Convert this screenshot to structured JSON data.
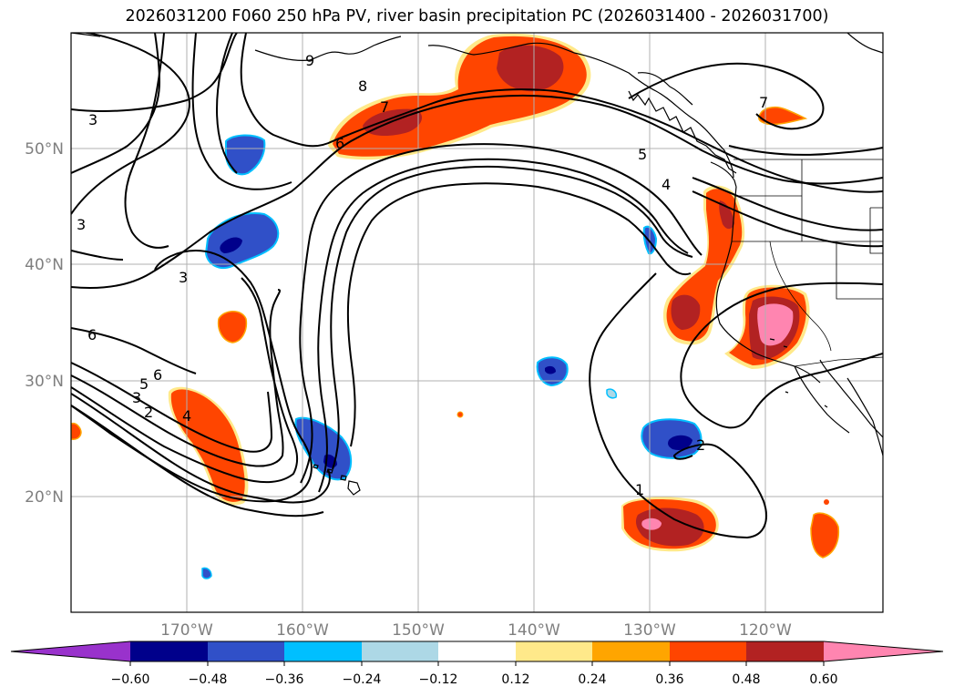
{
  "title": "2026031200 F060 250 hPa PV, river basin precipitation PC (2026031400 - 2026031700)",
  "lat_labels": [
    "50°N",
    "40°N",
    "30°N",
    "20°N"
  ],
  "lon_labels": [
    "170°W",
    "160°W",
    "150°W",
    "140°W",
    "130°W",
    "120°W"
  ],
  "contour_labels": [
    "3",
    "3",
    "3",
    "6",
    "5",
    "6",
    "3",
    "2",
    "4",
    "9",
    "8",
    "7",
    "6",
    "5",
    "4",
    "7",
    "2",
    "1"
  ],
  "colorbar": {
    "ticks": [
      "−0.60",
      "−0.48",
      "−0.36",
      "−0.24",
      "−0.12",
      "0.12",
      "0.24",
      "0.36",
      "0.48",
      "0.60"
    ],
    "colors": [
      "#9932cc",
      "#00008b",
      "#3050c8",
      "#00bfff",
      "#add8e6",
      "#ffffff",
      "#ffe98a",
      "#ffa500",
      "#ff4500",
      "#b22222",
      "#ff85b0"
    ]
  },
  "palette": {
    "contour": "#000000",
    "grid": "#b0b0b0",
    "axis_label": "#7f7f7f"
  }
}
